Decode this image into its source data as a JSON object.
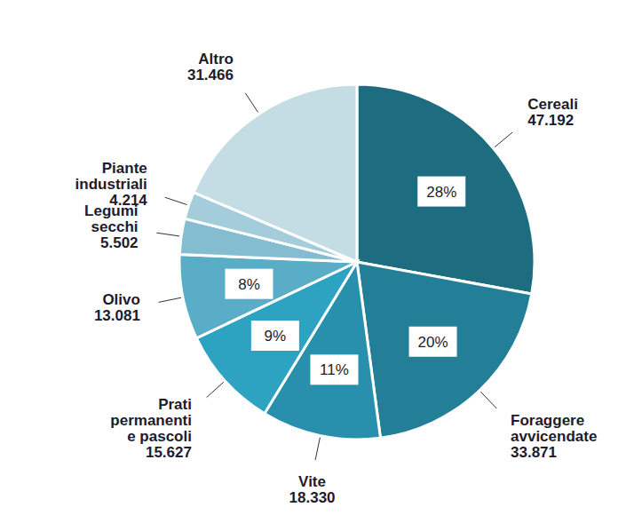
{
  "chart_data": {
    "type": "pie",
    "categories": [
      "Cereali",
      "Foraggere avvicendate",
      "Vite",
      "Prati permanenti e pascoli",
      "Olivo",
      "Legumi secchi",
      "Piante industriali",
      "Altro"
    ],
    "values": [
      47192,
      33871,
      18330,
      15627,
      13081,
      5502,
      4214,
      31466
    ],
    "value_labels": [
      "47.192",
      "33.871",
      "18.330",
      "15.627",
      "13.081",
      "5.502",
      "4.214",
      "31.466"
    ],
    "percentages": [
      28,
      20,
      11,
      9,
      8,
      null,
      null,
      null
    ],
    "percentage_labels": [
      "28%",
      "20%",
      "11%",
      "9%",
      "8%",
      null,
      null,
      null
    ],
    "colors": [
      "#1e6c80",
      "#237f98",
      "#2890ac",
      "#2ea2c1",
      "#5aadc6",
      "#84bdd0",
      "#a3cddb",
      "#c4dce4"
    ],
    "data_labels": true
  }
}
